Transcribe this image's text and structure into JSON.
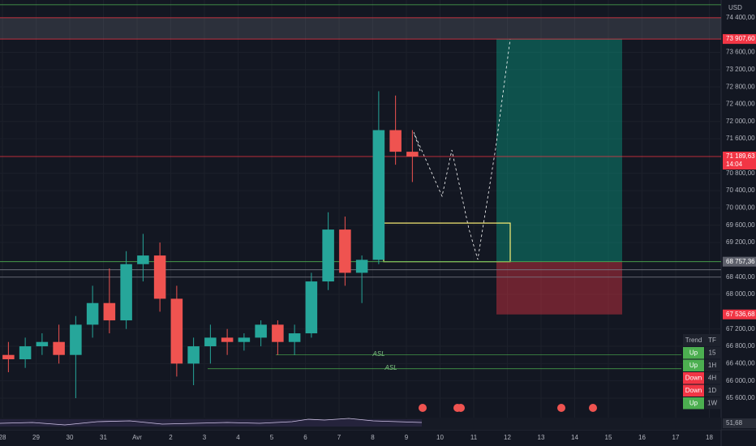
{
  "chart_data": {
    "type": "candlestick",
    "currency": "USD",
    "ylim": [
      65150,
      74810
    ],
    "yticks": [
      {
        "value": 74400,
        "label": "74 400,00"
      },
      {
        "value": 73600,
        "label": "73 600,00"
      },
      {
        "value": 73200,
        "label": "73 200,00"
      },
      {
        "value": 72800,
        "label": "72 800,00"
      },
      {
        "value": 72400,
        "label": "72 400,00"
      },
      {
        "value": 72000,
        "label": "72 000,00"
      },
      {
        "value": 71600,
        "label": "71 600,00"
      },
      {
        "value": 70800,
        "label": "70 800,00"
      },
      {
        "value": 70400,
        "label": "70 400,00"
      },
      {
        "value": 70000,
        "label": "70 000,00"
      },
      {
        "value": 69600,
        "label": "69 600,00"
      },
      {
        "value": 69200,
        "label": "69 200,00"
      },
      {
        "value": 68400,
        "label": "68 400,00"
      },
      {
        "value": 68000,
        "label": "68 000,00"
      },
      {
        "value": 67200,
        "label": "67 200,00"
      },
      {
        "value": 66800,
        "label": "66 800,00"
      },
      {
        "value": 66400,
        "label": "66 400,00"
      },
      {
        "value": 66000,
        "label": "66 000,00"
      },
      {
        "value": 65600,
        "label": "65 600,00"
      }
    ],
    "x_labels": [
      "28",
      "29",
      "30",
      "31",
      "Avr",
      "2",
      "3",
      "4",
      "5",
      "6",
      "7",
      "8",
      "9",
      "10",
      "11",
      "12",
      "13",
      "14",
      "15",
      "16",
      "17",
      "18"
    ],
    "open": [
      66600,
      66500,
      66800,
      66900,
      66600,
      67300,
      67800,
      67400,
      68700,
      68900,
      67900,
      66400,
      66800,
      67000,
      66900,
      67000,
      67300,
      66900,
      67100,
      68300,
      69500,
      68500,
      68800,
      71800,
      71300
    ],
    "high": [
      66900,
      67000,
      67100,
      67300,
      67500,
      68200,
      68600,
      69000,
      69400,
      69200,
      68200,
      67000,
      67300,
      67200,
      67100,
      67400,
      67400,
      67300,
      68500,
      69900,
      69800,
      68900,
      72700,
      72600,
      71800
    ],
    "low": [
      66200,
      66300,
      66600,
      66400,
      65600,
      67000,
      67100,
      67200,
      68300,
      67600,
      66100,
      65900,
      66400,
      66600,
      66700,
      66800,
      66600,
      66600,
      67000,
      68100,
      68200,
      67800,
      68700,
      71000,
      70600
    ],
    "close": [
      66500,
      66800,
      66900,
      66600,
      67300,
      67800,
      67400,
      68700,
      68900,
      67900,
      66400,
      66800,
      67000,
      66900,
      67000,
      67300,
      66900,
      67100,
      68300,
      69500,
      68500,
      68800,
      71800,
      71300,
      71189.63
    ],
    "colors": {
      "up": "#26a69a",
      "down": "#ef5350"
    },
    "levels": [
      {
        "value": 74700,
        "color": "#4caf50"
      },
      {
        "value": 74400,
        "color": "#f23645"
      },
      {
        "value": 73907.6,
        "color": "#f23645"
      },
      {
        "value": 71189.63,
        "color": "#f23645"
      },
      {
        "value": 68757.36,
        "color": "#4caf50"
      },
      {
        "value": 68570,
        "color": "#787b86"
      },
      {
        "value": 68400,
        "color": "#787b86"
      }
    ],
    "price_tags": [
      {
        "value": 73907.6,
        "label": "73 907,60",
        "color": "#f23645"
      },
      {
        "value": 71189.63,
        "label": "71 189,63",
        "sub": "14:04",
        "color": "#f23645"
      },
      {
        "value": 68757.36,
        "label": "68 757,36",
        "color": "#5d606b"
      },
      {
        "value": 67536.68,
        "label": "67 536,68",
        "color": "#f23645"
      }
    ],
    "position": {
      "entry": 68757.36,
      "target": 73907.6,
      "stop": 67536.68
    },
    "zone": {
      "low": 68757.36,
      "high": 69650
    },
    "asl": [
      {
        "value": 66600,
        "label": "ASL"
      },
      {
        "value": 66280,
        "label": "ASL"
      }
    ],
    "rsi": {
      "value": 51.68,
      "label": "51,68"
    },
    "trend_table": {
      "header": [
        "Trend",
        "TF"
      ],
      "rows": [
        {
          "trend": "Up",
          "tf": "15",
          "color": "#4caf50"
        },
        {
          "trend": "Up",
          "tf": "1H",
          "color": "#4caf50"
        },
        {
          "trend": "Down",
          "tf": "4H",
          "color": "#f23645"
        },
        {
          "trend": "Down",
          "tf": "1D",
          "color": "#f23645"
        },
        {
          "trend": "Up",
          "tf": "1W",
          "color": "#4caf50"
        }
      ]
    }
  }
}
